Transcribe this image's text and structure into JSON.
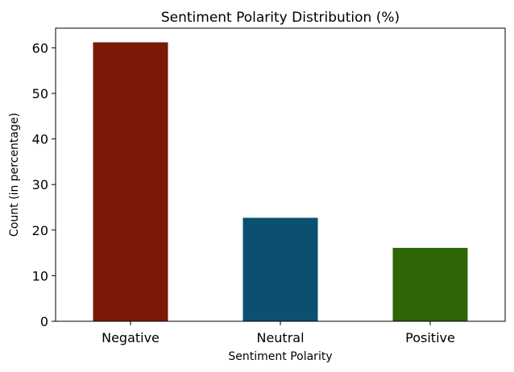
{
  "chart_data": {
    "type": "bar",
    "title": "Sentiment Polarity Distribution (%)",
    "xlabel": "Sentiment Polarity",
    "ylabel": "Count (in percentage)",
    "categories": [
      "Negative",
      "Neutral",
      "Positive"
    ],
    "values": [
      61.2,
      22.7,
      16.1
    ],
    "colors": [
      "#7a1905",
      "#0b4f71",
      "#2e6605"
    ],
    "ylim": [
      0,
      64.3
    ],
    "yticks": [
      0,
      10,
      20,
      30,
      40,
      50,
      60
    ],
    "grid": false,
    "legend": "none"
  }
}
